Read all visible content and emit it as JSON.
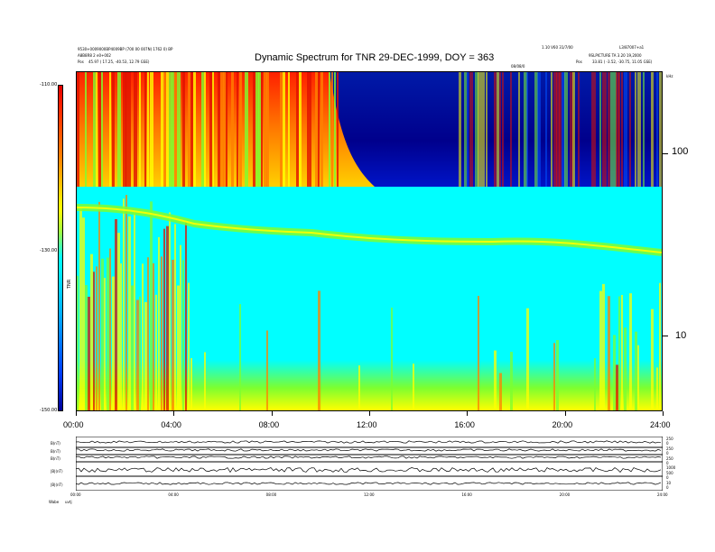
{
  "header": {
    "title": "Dynamic Spectrum for TNR 29-DEC-1999, DOY = 363",
    "left_line1": "9530+0009000BP4009BP (700 00 007N) 1762 0) BP",
    "left_line2": "A8B8R8 2 e0+002",
    "left_pos_label": "Pos",
    "left_pos_value": "45.97 ( 17.25, -40.53, 12.79 GSE)",
    "right_line1": "1.10 V60 31/7/00",
    "right_line2": "L3/87007+a1",
    "right_line3": "9SLPICTURE TA 3.20 19,2000",
    "right_pos_label": "Pos",
    "right_pos_value": "33.81 ( -3.52, -30.75, 11.05 GSE)",
    "center_tag": "08/08/0"
  },
  "colorbar": {
    "ticks": [
      "-110.00",
      "-130.00",
      "-150.00"
    ],
    "label": "TNR"
  },
  "y_right_ticks": [
    "100",
    "10"
  ],
  "y_right_unit": "kHz",
  "x_ticks": [
    "00:00",
    "04:00",
    "08:00",
    "12:00",
    "16:00",
    "20:00",
    "24:00"
  ],
  "bottom": {
    "panel_labels": [
      "B(nT)",
      "B(nT)",
      "B(nT)",
      "|B|(nT)",
      "|B|(nT)"
    ],
    "right_scale": [
      "250",
      "0",
      "250",
      "0",
      "250",
      "0",
      "1000",
      "500",
      "0",
      "10",
      "0"
    ],
    "x_ticks": [
      "00:00",
      "04:00",
      "08:00",
      "12:00",
      "16:00",
      "20:00",
      "24:00"
    ],
    "footer_left": "Wabe",
    "footer_val": "uvtj"
  },
  "chart_data": {
    "type": "heatmap",
    "title": "Dynamic Spectrum for TNR 29-DEC-1999, DOY = 363",
    "x": {
      "ticks": [
        "00:00",
        "04:00",
        "08:00",
        "12:00",
        "16:00",
        "20:00",
        "24:00"
      ],
      "range_hours": [
        0,
        24
      ]
    },
    "y": {
      "scale": "log",
      "ticks": [
        100,
        10
      ],
      "unit": "kHz",
      "range": [
        4,
        245
      ]
    },
    "z": {
      "range": [
        -150,
        -110
      ],
      "ticks": [
        -110,
        -130,
        -150
      ]
    },
    "features": [
      {
        "name": "ion-line",
        "freq_start": 43,
        "freq_end": 30
      },
      {
        "name": "noise-band-top",
        "freq_min": 60
      },
      {
        "name": "noise-band-bottom",
        "freq_max": 5
      }
    ],
    "grid": false,
    "legend": "colorbar-left"
  },
  "colors": {
    "red": "#e01000",
    "orange": "#ff8000",
    "yellow": "#ffff00",
    "green": "#7cff30",
    "cyan": "#00ffff",
    "blue": "#0050ff",
    "navy": "#00008c"
  }
}
